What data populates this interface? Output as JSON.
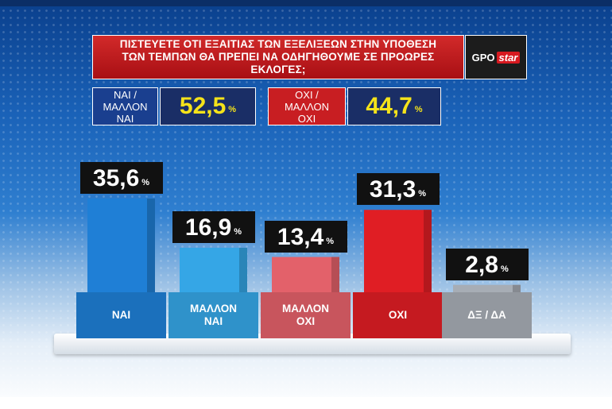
{
  "question": {
    "line1": "ΠΙΣΤΕΥΕΤΕ ΟΤΙ ΕΞΑΙΤΙΑΣ ΤΩΝ ΕΞΕΛΙΞΕΩΝ ΣΤΗΝ ΥΠΟΘΕΣΗ",
    "line2": "ΤΩΝ ΤΕΜΠΩΝ ΘΑ ΠΡΕΠΕΙ ΝΑ ΟΔΗΓΗΘΟΥΜΕ ΣΕ ΠΡΟΩΡΕΣ ΕΚΛΟΓΕΣ;"
  },
  "logo": {
    "left": "GPO",
    "right": "star"
  },
  "summary": [
    {
      "label_line1": "ΝΑΙ /",
      "label_line2": "ΜΑΛΛΟΝ",
      "label_line3": "ΝΑΙ",
      "value": "52,5",
      "unit": "%",
      "color": "#1a3f8f"
    },
    {
      "label_line1": "ΟΧΙ /",
      "label_line2": "ΜΑΛΛΟΝ",
      "label_line3": "ΟΧΙ",
      "value": "44,7",
      "unit": "%",
      "color": "#c81e22"
    }
  ],
  "chart_data": {
    "type": "bar",
    "categories": [
      "ΝΑΙ",
      "ΜΑΛΛΟΝ\nΝΑΙ",
      "ΜΑΛΛΟΝ\nΟΧΙ",
      "ΟΧΙ",
      "ΔΞ / ΔΑ"
    ],
    "values": [
      35.6,
      16.9,
      13.4,
      31.3,
      2.8
    ],
    "value_labels": [
      "35,6",
      "16,9",
      "13,4",
      "31,3",
      "2,8"
    ],
    "unit": "%",
    "colors": [
      "#1f7fd6",
      "#35a6e6",
      "#e3616a",
      "#e01e24",
      "#a7adb5"
    ],
    "ylim": [
      0,
      40
    ],
    "grid": false,
    "title": "",
    "xlabel": "",
    "ylabel": ""
  }
}
